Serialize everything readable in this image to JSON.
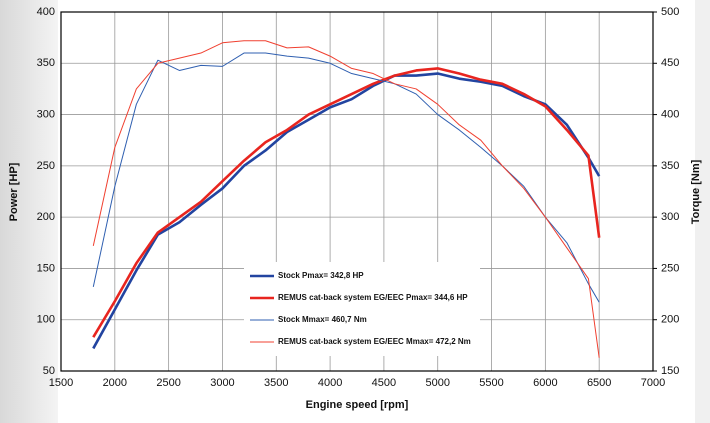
{
  "chart_data": {
    "type": "line",
    "x_label": "Engine speed [rpm]",
    "y_label": "Power [HP]",
    "y2_label": "Torque [Nm]",
    "x": [
      1800,
      2000,
      2200,
      2400,
      2600,
      2800,
      3000,
      3200,
      3400,
      3600,
      3800,
      4000,
      4200,
      4400,
      4600,
      4800,
      5000,
      5200,
      5400,
      5600,
      5800,
      6000,
      6200,
      6400,
      6500
    ],
    "series": [
      {
        "name": "Stock Pmax= 342,8 HP",
        "color": "#2244a0",
        "values": [
          72,
          110,
          148,
          183,
          195,
          212,
          228,
          250,
          265,
          283,
          295,
          307,
          315,
          328,
          338,
          338,
          340,
          335,
          332,
          328,
          318,
          310,
          290,
          258,
          240
        ]
      },
      {
        "name": "REMUS cat-back system EG/EEC Pmax=  344,6 HP",
        "color": "#e8251f",
        "values": [
          83,
          118,
          155,
          185,
          200,
          215,
          235,
          255,
          273,
          285,
          300,
          310,
          320,
          330,
          338,
          343,
          345,
          340,
          334,
          330,
          320,
          308,
          285,
          260,
          180
        ]
      },
      {
        "name": "Stock Mmax= 460,7 Nm",
        "color": "#2f5fb0",
        "axis": "y2",
        "values": [
          232,
          330,
          410,
          453,
          443,
          448,
          447,
          460,
          460,
          457,
          455,
          450,
          440,
          435,
          430,
          420,
          400,
          385,
          368,
          350,
          330,
          300,
          275,
          235,
          217
        ]
      },
      {
        "name": "REMUS cat-back system EG/EEC Mmax= 472,2 Nm",
        "color": "#f04030",
        "axis": "y2",
        "values": [
          272,
          368,
          425,
          450,
          455,
          460,
          470,
          472,
          472,
          465,
          466,
          457,
          445,
          440,
          430,
          425,
          410,
          390,
          375,
          350,
          328,
          300,
          270,
          240,
          163
        ]
      }
    ],
    "xlim": [
      1500,
      7000
    ],
    "xticks": [
      1500,
      2000,
      2500,
      3000,
      3500,
      4000,
      4500,
      5000,
      5500,
      6000,
      6500,
      7000
    ],
    "ylim": [
      50,
      400
    ],
    "yticks": [
      50,
      100,
      150,
      200,
      250,
      300,
      350,
      400
    ],
    "y2lim": [
      150,
      500
    ],
    "y2ticks": [
      150,
      200,
      250,
      300,
      350,
      400,
      450,
      500
    ],
    "grid": true
  }
}
